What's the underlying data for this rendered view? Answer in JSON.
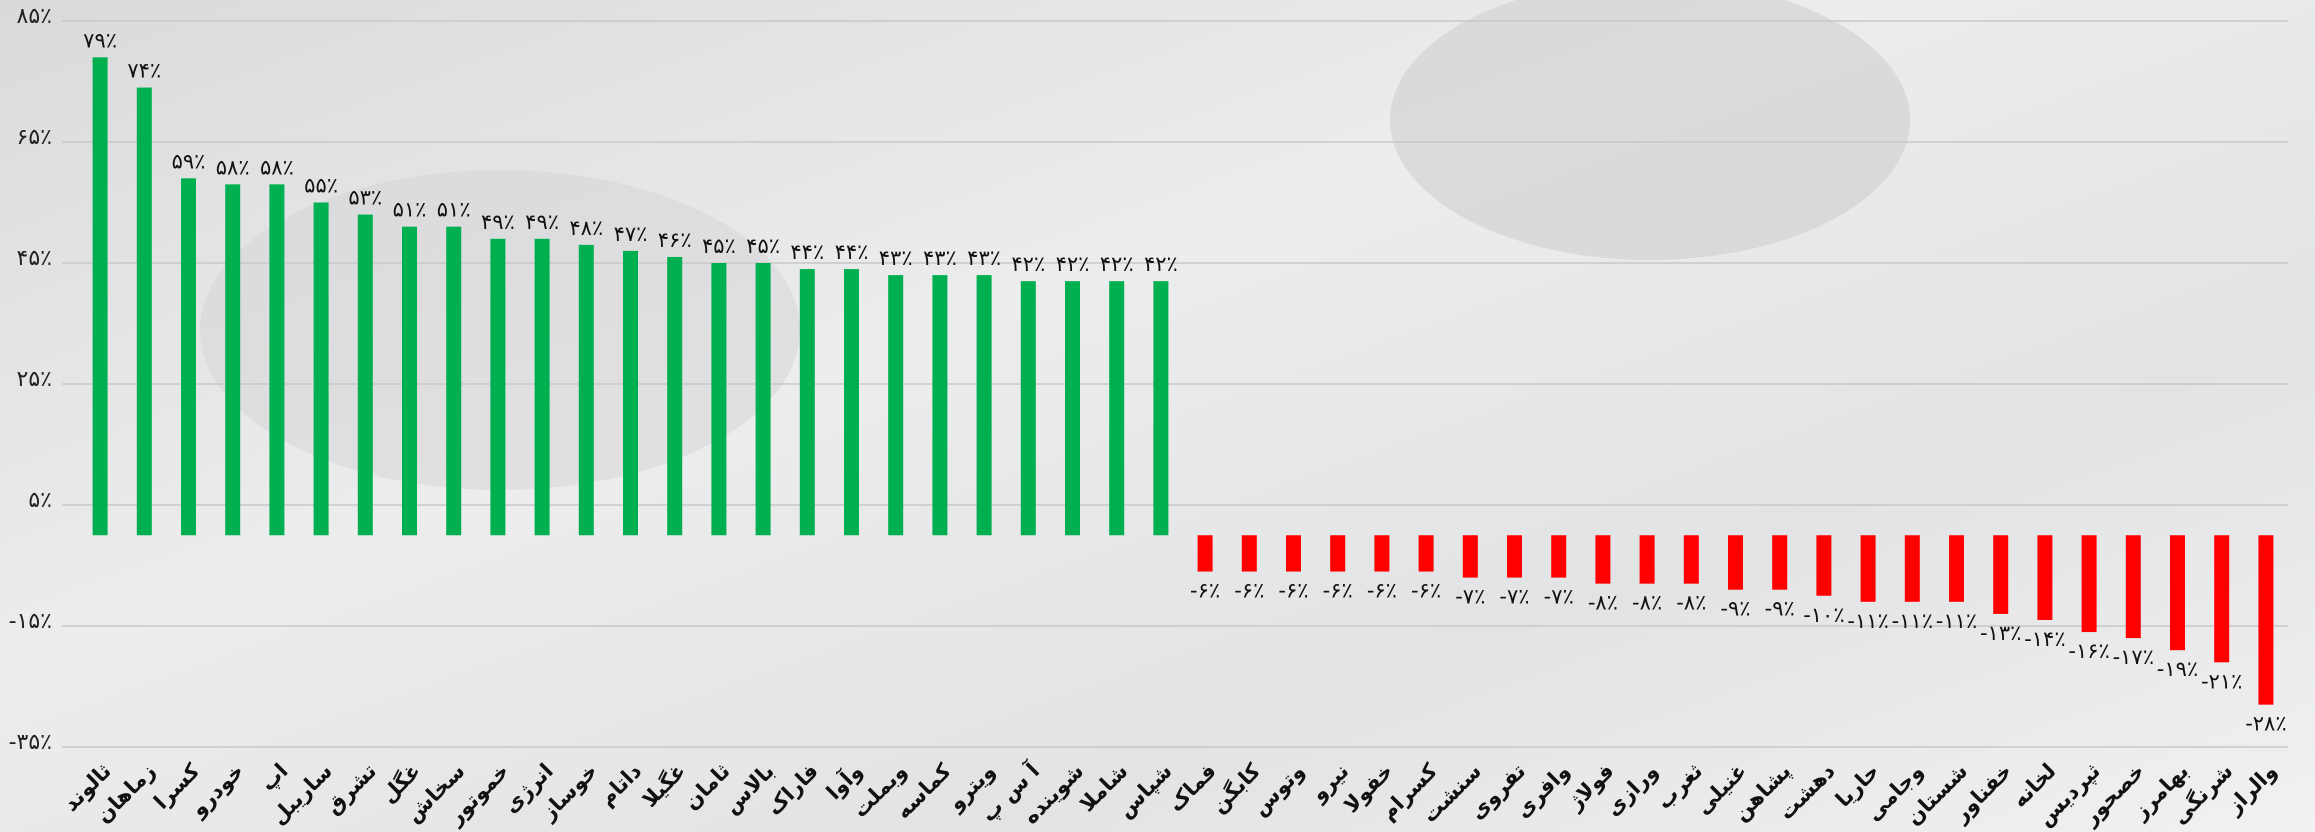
{
  "chart_data": {
    "type": "bar",
    "categories": [
      "ثالوند",
      "زماهان",
      "کسرا",
      "خودرو",
      "اپ",
      "ساریبل",
      "تشرق",
      "غگل",
      "سخاش",
      "خموتور",
      "انرژی",
      "خوساز",
      "داتام",
      "غگیلا",
      "ثامان",
      "بالاس",
      "فاراک",
      "وآوا",
      "وبملت",
      "کماسه",
      "ویترو",
      "آ س پ",
      "شوینده",
      "شاملا",
      "شپاس",
      "فماک",
      "کابگن",
      "وتوس",
      "نیرو",
      "خفولا",
      "کسرام",
      "سنشت",
      "تفروی",
      "وافری",
      "فولاژ",
      "ورازی",
      "ثغرب",
      "غنیلی",
      "پشاهن",
      "دهشت",
      "حاریا",
      "وجامی",
      "شستان",
      "خفناور",
      "لخانه",
      "ثپردیس",
      "خصحور",
      "بهامرز",
      "شرنگی",
      "والراز"
    ],
    "values": [
      79,
      74,
      59,
      58,
      58,
      55,
      53,
      51,
      51,
      49,
      49,
      48,
      47,
      46,
      45,
      45,
      44,
      44,
      43,
      43,
      43,
      42,
      42,
      42,
      42,
      -6,
      -6,
      -6,
      -6,
      -6,
      -6,
      -7,
      -7,
      -7,
      -8,
      -8,
      -8,
      -9,
      -9,
      -10,
      -11,
      -11,
      -11,
      -13,
      -14,
      -16,
      -17,
      -19,
      -21,
      -28
    ],
    "value_labels": [
      "۷۹٪",
      "۷۴٪",
      "۵۹٪",
      "۵۸٪",
      "۵۸٪",
      "۵۵٪",
      "۵۳٪",
      "۵۱٪",
      "۵۱٪",
      "۴۹٪",
      "۴۹٪",
      "۴۸٪",
      "۴۷٪",
      "۴۶٪",
      "۴۵٪",
      "۴۵٪",
      "۴۴٪",
      "۴۴٪",
      "۴۳٪",
      "۴۳٪",
      "۴۳٪",
      "۴۲٪",
      "۴۲٪",
      "۴۲٪",
      "۴۲٪",
      "-۶٪",
      "-۶٪",
      "-۶٪",
      "-۶٪",
      "-۶٪",
      "-۶٪",
      "-۷٪",
      "-۷٪",
      "-۷٪",
      "-۸٪",
      "-۸٪",
      "-۸٪",
      "-۹٪",
      "-۹٪",
      "-۱۰٪",
      "-۱۱٪",
      "-۱۱٪",
      "-۱۱٪",
      "-۱۳٪",
      "-۱۴٪",
      "-۱۶٪",
      "-۱۷٪",
      "-۱۹٪",
      "-۲۱٪",
      "-۲۸٪"
    ],
    "colors": {
      "positive": "#00b050",
      "negative": "#ff0000"
    },
    "ylim": [
      -35,
      85
    ],
    "yticks": [
      {
        "value": 85,
        "label": "۸۵٪"
      },
      {
        "value": 65,
        "label": "۶۵٪"
      },
      {
        "value": 45,
        "label": "۴۵٪"
      },
      {
        "value": 25,
        "label": "۲۵٪"
      },
      {
        "value": 5,
        "label": "۵٪"
      },
      {
        "value": -15,
        "label": "-۱۵٪"
      },
      {
        "value": -35,
        "label": "-۳۵٪"
      }
    ],
    "grid": true
  }
}
